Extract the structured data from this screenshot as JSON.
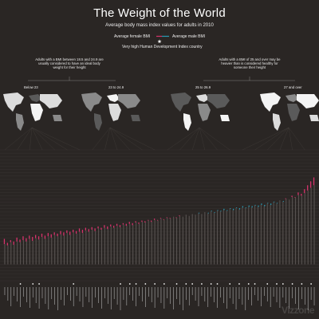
{
  "header": {
    "title": "The Weight of the World",
    "subtitle": "Average body mass index values for adults in 2010"
  },
  "legend": {
    "female_label": "Average female BMI",
    "male_label": "Average male BMI",
    "hdi_label": "Very high Human Development Index country",
    "female_color": "#d6336c",
    "male_color": "#2a9bb5",
    "star_icon": "star-icon"
  },
  "notes": {
    "healthy": "Adults with a BMI between 18.5 and 24.9 are usually considered to have an ideal body weight for their height",
    "overweight": "Adults with a BMI of 25 and over may be heavier than is considered healthy for someone their height"
  },
  "maps": [
    {
      "label": "Below 23",
      "icon": "world-map-icon"
    },
    {
      "label": "23 to 24.9",
      "icon": "world-map-icon"
    },
    {
      "label": "25 to 26.9",
      "icon": "world-map-icon"
    },
    {
      "label": "27 and over",
      "icon": "world-map-icon"
    }
  ],
  "watermark": "Vizzone",
  "chart_data": {
    "type": "bar",
    "title": "The Weight of the World",
    "subtitle": "Average body mass index values for adults in 2010",
    "ylim": [
      15,
      35
    ],
    "grid": true,
    "legend_position": "top-center",
    "series": [
      {
        "name": "Average female BMI",
        "color": "#d6336c",
        "values": [
          21.4,
          20.8,
          21.2,
          21.0,
          21.6,
          21.3,
          21.8,
          21.5,
          21.9,
          21.7,
          22.0,
          21.8,
          22.2,
          21.9,
          22.3,
          22.1,
          22.4,
          22.2,
          22.6,
          22.4,
          22.7,
          22.5,
          22.8,
          22.6,
          23.0,
          22.8,
          23.1,
          22.9,
          23.2,
          23.0,
          23.3,
          23.1,
          23.5,
          23.3,
          23.6,
          23.4,
          23.7,
          23.5,
          23.8,
          23.7,
          24.0,
          23.8,
          24.1,
          23.9,
          24.2,
          24.1,
          24.3,
          24.2,
          24.5,
          24.3,
          24.6,
          24.4,
          24.7,
          24.6,
          24.8,
          24.7,
          25.0,
          24.8,
          25.1,
          24.9,
          25.2,
          25.1,
          25.3,
          25.2,
          25.5,
          25.3,
          25.6,
          25.4,
          25.7,
          25.6,
          25.8,
          25.7,
          26.0,
          25.8,
          26.1,
          25.9,
          26.2,
          26.1,
          26.3,
          26.2,
          26.5,
          26.3,
          26.6,
          26.4,
          26.8,
          26.6,
          27.0,
          26.8,
          27.3,
          27.1,
          27.6,
          27.4,
          28.0,
          27.8,
          28.5,
          28.3,
          29.0,
          29.6,
          30.2,
          30.8
        ]
      },
      {
        "name": "Average male BMI",
        "color": "#2a9bb5",
        "values": [
          20.6,
          20.4,
          20.9,
          20.5,
          21.0,
          20.9,
          21.2,
          21.0,
          21.4,
          21.1,
          21.5,
          21.3,
          21.7,
          21.4,
          21.8,
          21.6,
          22.0,
          21.8,
          22.1,
          21.9,
          22.3,
          22.0,
          22.4,
          22.2,
          22.5,
          22.3,
          22.7,
          22.5,
          22.8,
          22.6,
          23.0,
          22.8,
          23.1,
          22.9,
          23.3,
          23.1,
          23.4,
          23.2,
          23.6,
          23.4,
          23.7,
          23.5,
          23.9,
          23.7,
          24.0,
          23.9,
          24.2,
          24.0,
          24.3,
          24.2,
          24.5,
          24.3,
          24.6,
          24.5,
          24.8,
          24.6,
          24.9,
          24.8,
          25.1,
          24.9,
          25.2,
          25.1,
          25.4,
          25.2,
          25.5,
          25.4,
          25.7,
          25.5,
          25.8,
          25.7,
          26.0,
          25.8,
          26.1,
          26.0,
          26.2,
          26.1,
          26.4,
          26.2,
          26.5,
          26.4,
          26.6,
          26.5,
          26.8,
          26.6,
          26.9,
          26.8,
          27.1,
          26.9,
          27.3,
          27.2,
          27.5,
          27.4,
          27.8,
          27.7,
          28.1,
          28.0,
          28.4,
          28.8,
          29.2,
          29.6
        ]
      }
    ],
    "very_high_hdi": [
      5,
      9,
      11,
      22,
      37,
      40,
      42,
      45,
      48,
      51,
      55,
      58,
      60,
      63,
      66,
      68,
      72,
      75,
      78,
      80,
      84,
      87,
      89,
      92,
      95,
      98
    ]
  }
}
